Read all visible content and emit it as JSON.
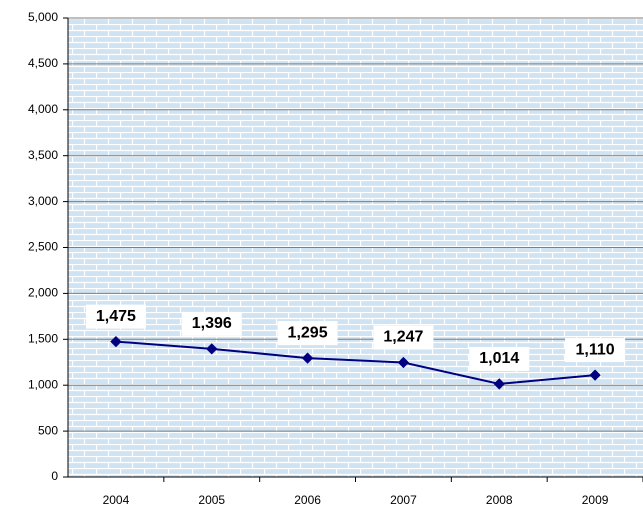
{
  "chart_data": {
    "type": "line",
    "categories": [
      "2004",
      "2005",
      "2006",
      "2007",
      "2008",
      "2009"
    ],
    "series": [
      {
        "color": "#000080",
        "values": [
          1475,
          1396,
          1295,
          1247,
          1014,
          1110
        ],
        "value_labels": [
          "1,475",
          "1,396",
          "1,295",
          "1,247",
          "1,014",
          "1,110"
        ]
      }
    ],
    "ylim": [
      0,
      5000
    ],
    "yticks": [
      0,
      500,
      {
        "value": 1000,
        "label": "1,000"
      },
      {
        "value": 1500,
        "label": "1,500"
      },
      {
        "value": 2000,
        "label": "2,000"
      },
      {
        "value": 2500,
        "label": "2,500"
      },
      {
        "value": 3000,
        "label": "3,000"
      },
      {
        "value": 3500,
        "label": "3,500"
      },
      {
        "value": 4000,
        "label": "4,000"
      },
      {
        "value": 4500,
        "label": "4,500"
      },
      {
        "value": 5000,
        "label": "5,000"
      }
    ],
    "grid": true
  }
}
